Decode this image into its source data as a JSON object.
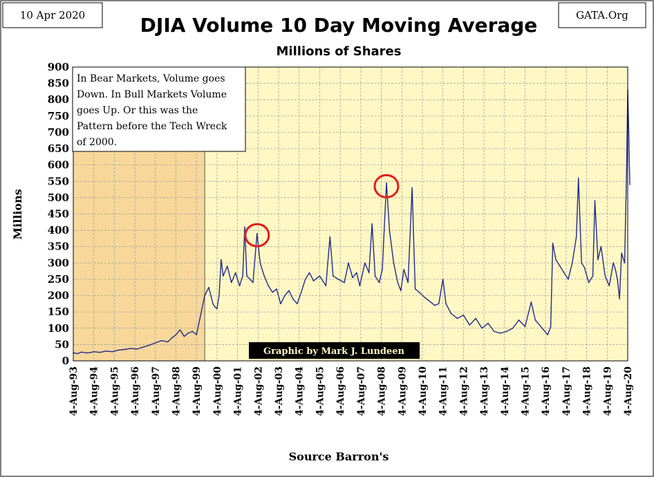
{
  "header": {
    "date": "10 Apr 2020",
    "source_site": "GATA.Org"
  },
  "chart_data": {
    "type": "line",
    "title": "DJIA Volume 10 Day Moving Average",
    "subtitle": "Millions of Shares",
    "xlabel": "Source Barron's",
    "ylabel": "Millions",
    "ylim": [
      0,
      900
    ],
    "yticks": [
      0,
      50,
      100,
      150,
      200,
      250,
      300,
      350,
      400,
      450,
      500,
      550,
      600,
      650,
      700,
      750,
      800,
      850,
      900
    ],
    "xticks": [
      "4-Aug-93",
      "4-Aug-94",
      "4-Aug-95",
      "4-Aug-96",
      "4-Aug-97",
      "4-Aug-98",
      "4-Aug-99",
      "4-Aug-00",
      "4-Aug-01",
      "4-Aug-02",
      "4-Aug-03",
      "4-Aug-04",
      "4-Aug-05",
      "4-Aug-06",
      "4-Aug-07",
      "4-Aug-08",
      "4-Aug-09",
      "4-Aug-10",
      "4-Aug-11",
      "4-Aug-12",
      "4-Aug-13",
      "4-Aug-14",
      "4-Aug-15",
      "4-Aug-16",
      "4-Aug-17",
      "4-Aug-18",
      "4-Aug-19",
      "4-Aug-20"
    ],
    "grid": true,
    "line_color": "#1f2a8c",
    "plot_background": "#fff7c4",
    "bear_region_background": "#f7d79a",
    "bear_region_x": [
      "1993.6",
      "2000.0"
    ],
    "highlight_color": "#e31b1b",
    "annotation_note": "In Bear Markets, Volume goes Down.  In Bull Markets Volume goes Up.  Or this was  the Pattern before the Tech Wreck of 2000.",
    "credit": "Graphic by Mark J. Lundeen",
    "highlights": [
      {
        "x": 2002.55,
        "y": 385
      },
      {
        "x": 2008.85,
        "y": 535
      }
    ],
    "series": [
      {
        "points": [
          [
            1993.6,
            25
          ],
          [
            1993.8,
            22
          ],
          [
            1994.0,
            27
          ],
          [
            1994.3,
            24
          ],
          [
            1994.6,
            28
          ],
          [
            1994.9,
            26
          ],
          [
            1995.2,
            30
          ],
          [
            1995.5,
            28
          ],
          [
            1995.8,
            33
          ],
          [
            1996.1,
            35
          ],
          [
            1996.4,
            38
          ],
          [
            1996.7,
            36
          ],
          [
            1997.0,
            42
          ],
          [
            1997.3,
            48
          ],
          [
            1997.6,
            55
          ],
          [
            1997.9,
            62
          ],
          [
            1998.2,
            58
          ],
          [
            1998.4,
            70
          ],
          [
            1998.6,
            80
          ],
          [
            1998.8,
            95
          ],
          [
            1999.0,
            75
          ],
          [
            1999.2,
            85
          ],
          [
            1999.4,
            90
          ],
          [
            1999.6,
            80
          ],
          [
            1999.8,
            140
          ],
          [
            2000.0,
            200
          ],
          [
            2000.2,
            225
          ],
          [
            2000.4,
            175
          ],
          [
            2000.5,
            165
          ],
          [
            2000.6,
            160
          ],
          [
            2000.7,
            200
          ],
          [
            2000.8,
            310
          ],
          [
            2000.9,
            260
          ],
          [
            2001.1,
            290
          ],
          [
            2001.3,
            240
          ],
          [
            2001.5,
            270
          ],
          [
            2001.7,
            230
          ],
          [
            2001.85,
            260
          ],
          [
            2001.95,
            410
          ],
          [
            2002.05,
            260
          ],
          [
            2002.2,
            250
          ],
          [
            2002.35,
            240
          ],
          [
            2002.55,
            390
          ],
          [
            2002.7,
            300
          ],
          [
            2002.9,
            260
          ],
          [
            2003.1,
            230
          ],
          [
            2003.3,
            210
          ],
          [
            2003.5,
            220
          ],
          [
            2003.7,
            175
          ],
          [
            2003.9,
            200
          ],
          [
            2004.1,
            215
          ],
          [
            2004.3,
            190
          ],
          [
            2004.5,
            175
          ],
          [
            2004.7,
            210
          ],
          [
            2004.9,
            250
          ],
          [
            2005.1,
            270
          ],
          [
            2005.3,
            245
          ],
          [
            2005.6,
            260
          ],
          [
            2005.9,
            230
          ],
          [
            2006.1,
            380
          ],
          [
            2006.25,
            260
          ],
          [
            2006.5,
            250
          ],
          [
            2006.8,
            240
          ],
          [
            2007.0,
            300
          ],
          [
            2007.2,
            255
          ],
          [
            2007.4,
            270
          ],
          [
            2007.55,
            230
          ],
          [
            2007.8,
            300
          ],
          [
            2008.0,
            270
          ],
          [
            2008.15,
            420
          ],
          [
            2008.3,
            260
          ],
          [
            2008.5,
            240
          ],
          [
            2008.65,
            280
          ],
          [
            2008.85,
            545
          ],
          [
            2009.0,
            400
          ],
          [
            2009.2,
            300
          ],
          [
            2009.4,
            240
          ],
          [
            2009.55,
            215
          ],
          [
            2009.7,
            280
          ],
          [
            2009.9,
            240
          ],
          [
            2010.1,
            530
          ],
          [
            2010.25,
            220
          ],
          [
            2010.45,
            210
          ],
          [
            2010.7,
            195
          ],
          [
            2010.9,
            185
          ],
          [
            2011.2,
            170
          ],
          [
            2011.4,
            175
          ],
          [
            2011.6,
            250
          ],
          [
            2011.75,
            175
          ],
          [
            2012.0,
            145
          ],
          [
            2012.3,
            130
          ],
          [
            2012.6,
            140
          ],
          [
            2012.9,
            110
          ],
          [
            2013.2,
            130
          ],
          [
            2013.5,
            100
          ],
          [
            2013.8,
            115
          ],
          [
            2014.1,
            90
          ],
          [
            2014.4,
            85
          ],
          [
            2014.7,
            90
          ],
          [
            2015.0,
            100
          ],
          [
            2015.3,
            125
          ],
          [
            2015.6,
            105
          ],
          [
            2015.9,
            180
          ],
          [
            2016.1,
            125
          ],
          [
            2016.3,
            110
          ],
          [
            2016.5,
            95
          ],
          [
            2016.7,
            80
          ],
          [
            2016.85,
            105
          ],
          [
            2016.95,
            360
          ],
          [
            2017.1,
            310
          ],
          [
            2017.3,
            290
          ],
          [
            2017.5,
            270
          ],
          [
            2017.7,
            250
          ],
          [
            2017.9,
            300
          ],
          [
            2018.1,
            380
          ],
          [
            2018.2,
            560
          ],
          [
            2018.35,
            300
          ],
          [
            2018.5,
            285
          ],
          [
            2018.7,
            240
          ],
          [
            2018.9,
            260
          ],
          [
            2019.0,
            490
          ],
          [
            2019.15,
            310
          ],
          [
            2019.3,
            350
          ],
          [
            2019.5,
            260
          ],
          [
            2019.7,
            230
          ],
          [
            2019.9,
            300
          ],
          [
            2020.0,
            280
          ],
          [
            2020.1,
            250
          ],
          [
            2020.2,
            190
          ],
          [
            2020.3,
            330
          ],
          [
            2020.45,
            300
          ],
          [
            2020.55,
            600
          ],
          [
            2020.6,
            830
          ],
          [
            2020.65,
            700
          ],
          [
            2020.7,
            540
          ]
        ]
      }
    ]
  }
}
